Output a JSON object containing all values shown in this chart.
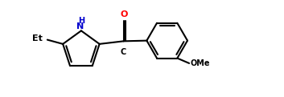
{
  "bg_color": "#ffffff",
  "line_color": "#000000",
  "label_color_N": "#0000cd",
  "label_color_O": "#ff0000",
  "label_color_text": "#000000",
  "line_width": 1.5,
  "figsize": [
    3.53,
    1.21
  ],
  "dpi": 100,
  "xlim": [
    0.0,
    10.0
  ],
  "ylim": [
    0.0,
    3.4
  ]
}
